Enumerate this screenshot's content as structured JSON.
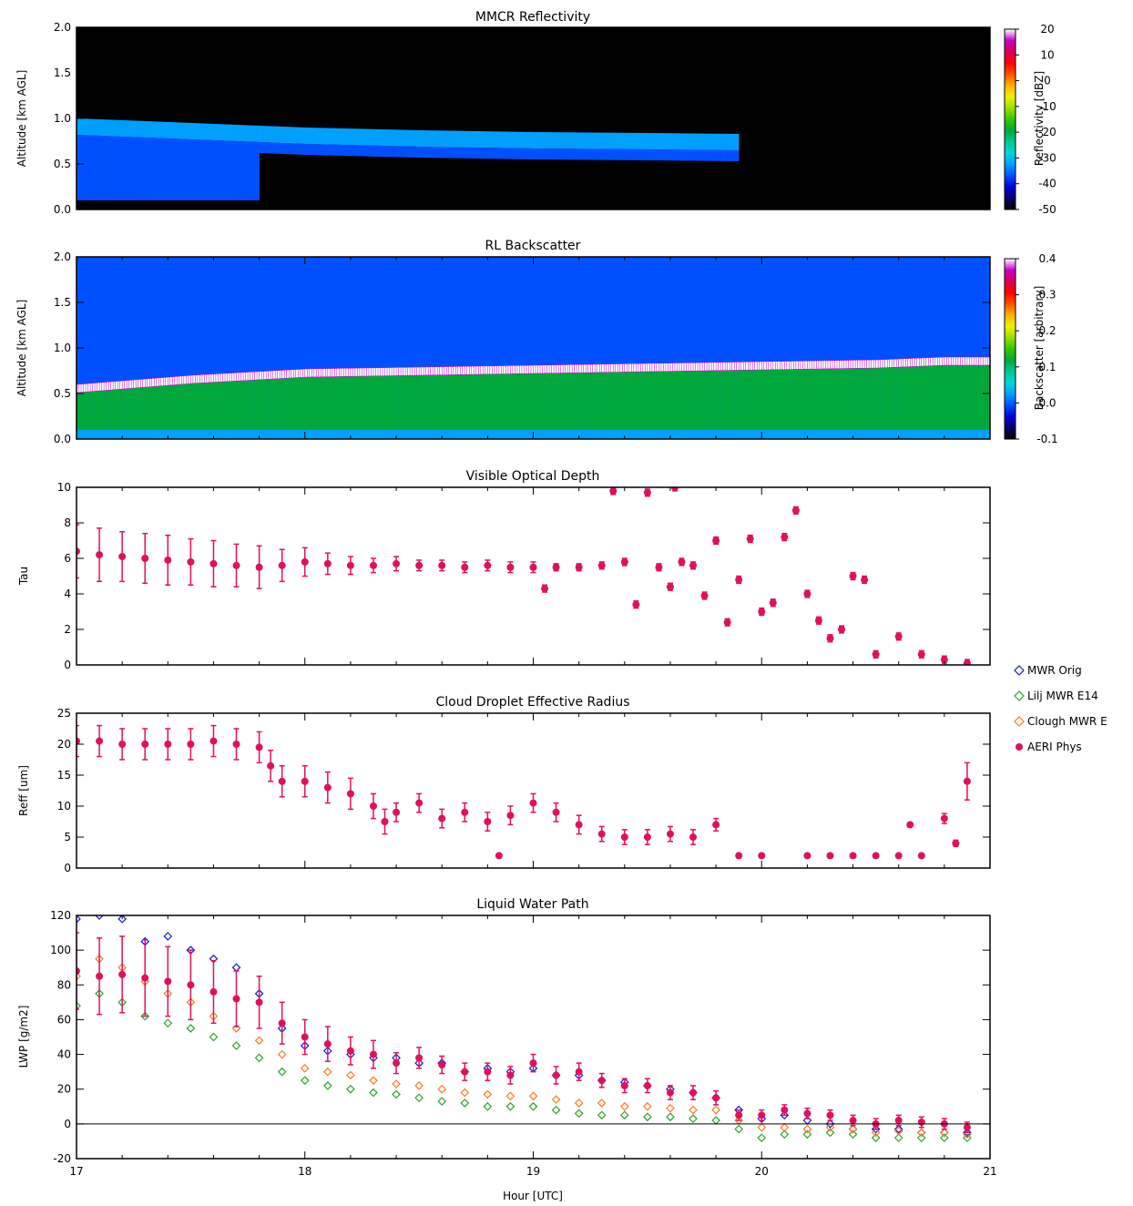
{
  "figure": {
    "xlabel": "Hour [UTC]",
    "xticks": [
      "17",
      "18",
      "19",
      "20",
      "21"
    ]
  },
  "colormap": [
    "#000000",
    "#08006a",
    "#0000d8",
    "#0050ff",
    "#00a0ff",
    "#00d8d8",
    "#00c890",
    "#00a83c",
    "#30c800",
    "#9ae000",
    "#f0f000",
    "#ffb000",
    "#ff5000",
    "#ff0000",
    "#d80058",
    "#c800c8",
    "#ffffff"
  ],
  "chart_data": [
    {
      "type": "heatmap",
      "title": "MMCR Reflectivity",
      "ylabel": "Altitude [km AGL]",
      "xlim": [
        17,
        21
      ],
      "ylim": [
        0,
        2
      ],
      "yticks": [
        "0.0",
        "0.5",
        "1.0",
        "1.5",
        "2.0"
      ],
      "colorbar": {
        "label": "Reflectivity [dBZ]",
        "range": [
          -50,
          20
        ],
        "ticks": [
          "20",
          "10",
          "0",
          "-10",
          "-20",
          "-30",
          "-40",
          "-50"
        ]
      },
      "cloud_layer": {
        "x": [
          17.0,
          17.5,
          18.0,
          18.5,
          19.0,
          19.5,
          19.9
        ],
        "top": [
          1.0,
          0.95,
          0.9,
          0.87,
          0.85,
          0.84,
          0.83
        ],
        "base_km": 0.1
      }
    },
    {
      "type": "heatmap",
      "title": "RL Backscatter",
      "ylabel": "Altitude [km AGL]",
      "xlim": [
        17,
        21
      ],
      "ylim": [
        0,
        2
      ],
      "yticks": [
        "0.0",
        "0.5",
        "1.0",
        "1.5",
        "2.0"
      ],
      "colorbar": {
        "label": "Backscatter [arbitrary]",
        "range": [
          -0.1,
          0.4
        ],
        "ticks": [
          "0.4",
          "0.3",
          "0.2",
          "0.1",
          "0.0",
          "-0.1"
        ]
      },
      "cloud_base": {
        "x": [
          17.0,
          17.5,
          18.0,
          18.5,
          19.0,
          19.5,
          20.0,
          20.5,
          20.8
        ],
        "alt_km": [
          0.55,
          0.65,
          0.72,
          0.74,
          0.76,
          0.78,
          0.8,
          0.82,
          0.85
        ]
      }
    },
    {
      "type": "scatter",
      "title": "Visible Optical Depth",
      "ylabel": "Tau",
      "xlim": [
        17,
        21
      ],
      "ylim": [
        0,
        10
      ],
      "yticks": [
        "0",
        "2",
        "4",
        "6",
        "8",
        "10"
      ],
      "series": [
        {
          "name": "AERI Phys",
          "x": [
            17.0,
            17.1,
            17.2,
            17.3,
            17.4,
            17.5,
            17.6,
            17.7,
            17.8,
            17.9,
            18.0,
            18.1,
            18.2,
            18.3,
            18.4,
            18.5,
            18.6,
            18.7,
            18.8,
            18.9,
            19.0,
            19.05,
            19.1,
            19.2,
            19.3,
            19.35,
            19.4,
            19.45,
            19.5,
            19.55,
            19.6,
            19.62,
            19.65,
            19.7,
            19.75,
            19.8,
            19.85,
            19.9,
            19.95,
            20.0,
            20.05,
            20.1,
            20.15,
            20.2,
            20.25,
            20.3,
            20.35,
            20.4,
            20.45,
            20.5,
            20.6,
            20.7,
            20.8,
            20.9
          ],
          "y": [
            6.4,
            6.2,
            6.1,
            6.0,
            5.9,
            5.8,
            5.7,
            5.6,
            5.5,
            5.6,
            5.8,
            5.7,
            5.6,
            5.6,
            5.7,
            5.6,
            5.6,
            5.5,
            5.6,
            5.5,
            5.5,
            4.3,
            5.5,
            5.5,
            5.6,
            9.8,
            5.8,
            3.4,
            9.7,
            5.5,
            4.4,
            10.0,
            5.8,
            5.6,
            3.9,
            7.0,
            2.4,
            4.8,
            7.1,
            3.0,
            3.5,
            7.2,
            8.7,
            4.0,
            2.5,
            1.5,
            2.0,
            5.0,
            4.8,
            0.6,
            1.6,
            0.6,
            0.3,
            0.1
          ],
          "err": [
            1.5,
            1.5,
            1.4,
            1.4,
            1.4,
            1.3,
            1.3,
            1.2,
            1.2,
            0.9,
            0.8,
            0.6,
            0.5,
            0.4,
            0.4,
            0.3,
            0.3,
            0.3,
            0.3,
            0.3,
            0.3,
            0.2,
            0.2,
            0.2,
            0.2,
            0.2,
            0.2,
            0.2,
            0.2,
            0.2,
            0.2,
            0.2,
            0.2,
            0.2,
            0.2,
            0.2,
            0.2,
            0.2,
            0.2,
            0.2,
            0.2,
            0.2,
            0.2,
            0.2,
            0.2,
            0.2,
            0.2,
            0.2,
            0.2,
            0.2,
            0.2,
            0.2,
            0.2,
            0.2
          ]
        }
      ]
    },
    {
      "type": "scatter",
      "title": "Cloud Droplet Effective Radius",
      "ylabel": "Reff [um]",
      "xlim": [
        17,
        21
      ],
      "ylim": [
        0,
        25
      ],
      "yticks": [
        "0",
        "5",
        "10",
        "15",
        "20",
        "25"
      ],
      "series": [
        {
          "name": "AERI Phys",
          "x": [
            17.0,
            17.1,
            17.2,
            17.3,
            17.4,
            17.5,
            17.6,
            17.7,
            17.8,
            17.85,
            17.9,
            18.0,
            18.1,
            18.2,
            18.3,
            18.35,
            18.4,
            18.5,
            18.6,
            18.7,
            18.8,
            18.85,
            18.9,
            19.0,
            19.1,
            19.2,
            19.3,
            19.4,
            19.5,
            19.6,
            19.7,
            19.8,
            19.9,
            20.0,
            20.2,
            20.3,
            20.4,
            20.5,
            20.6,
            20.65,
            20.7,
            20.8,
            20.85,
            20.9
          ],
          "y": [
            20.5,
            20.5,
            20.0,
            20.0,
            20.0,
            20.0,
            20.5,
            20.0,
            19.5,
            16.5,
            14.0,
            14.0,
            13.0,
            12.0,
            10.0,
            7.5,
            9.0,
            10.5,
            8.0,
            9.0,
            7.5,
            2.0,
            8.5,
            10.5,
            9.0,
            7.0,
            5.5,
            5.0,
            5.0,
            5.5,
            5.0,
            7.0,
            2.0,
            2.0,
            2.0,
            2.0,
            2.0,
            2.0,
            2.0,
            7.0,
            2.0,
            8.0,
            4.0,
            14.0
          ],
          "err": [
            2.5,
            2.5,
            2.5,
            2.5,
            2.5,
            2.5,
            2.5,
            2.5,
            2.5,
            2.5,
            2.5,
            2.5,
            2.5,
            2.5,
            2.0,
            2.0,
            1.5,
            1.5,
            1.5,
            1.5,
            1.5,
            0.3,
            1.5,
            1.5,
            1.5,
            1.5,
            1.2,
            1.2,
            1.2,
            1.2,
            1.2,
            1.0,
            0.3,
            0.3,
            0.3,
            0.3,
            0.3,
            0.3,
            0.3,
            0.3,
            0.3,
            0.8,
            0.5,
            3.0
          ]
        }
      ]
    },
    {
      "type": "scatter",
      "title": "Liquid Water Path",
      "ylabel": "LWP [g/m2]",
      "xlim": [
        17,
        21
      ],
      "ylim": [
        -20,
        120
      ],
      "yticks": [
        "-20",
        "0",
        "20",
        "40",
        "60",
        "80",
        "100",
        "120"
      ],
      "series": [
        {
          "name": "MWR Orig",
          "color": "#1414d8",
          "marker": "diamond-open",
          "x": [
            17.0,
            17.1,
            17.2,
            17.3,
            17.4,
            17.5,
            17.6,
            17.7,
            17.8,
            17.9,
            18.0,
            18.1,
            18.2,
            18.3,
            18.4,
            18.5,
            18.6,
            18.7,
            18.8,
            18.9,
            19.0,
            19.1,
            19.2,
            19.3,
            19.4,
            19.5,
            19.6,
            19.7,
            19.8,
            19.9,
            20.0,
            20.1,
            20.2,
            20.3,
            20.4,
            20.5,
            20.6,
            20.7,
            20.8,
            20.9
          ],
          "y": [
            118,
            120,
            118,
            105,
            108,
            100,
            95,
            90,
            75,
            55,
            45,
            42,
            40,
            38,
            38,
            35,
            35,
            30,
            32,
            30,
            32,
            28,
            28,
            25,
            24,
            22,
            20,
            18,
            15,
            8,
            3,
            5,
            2,
            0,
            -3,
            -3,
            -3,
            -5,
            -5,
            -5
          ]
        },
        {
          "name": "Lilj MWR E14",
          "color": "#30a030",
          "marker": "diamond-open",
          "x": [
            17.0,
            17.1,
            17.2,
            17.3,
            17.4,
            17.5,
            17.6,
            17.7,
            17.8,
            17.9,
            18.0,
            18.1,
            18.2,
            18.3,
            18.4,
            18.5,
            18.6,
            18.7,
            18.8,
            18.9,
            19.0,
            19.1,
            19.2,
            19.3,
            19.4,
            19.5,
            19.6,
            19.7,
            19.8,
            19.9,
            20.0,
            20.1,
            20.2,
            20.3,
            20.4,
            20.5,
            20.6,
            20.7,
            20.8,
            20.9
          ],
          "y": [
            68,
            75,
            70,
            62,
            58,
            55,
            50,
            45,
            38,
            30,
            25,
            22,
            20,
            18,
            17,
            15,
            13,
            12,
            10,
            10,
            10,
            8,
            6,
            5,
            5,
            4,
            4,
            3,
            2,
            -3,
            -8,
            -6,
            -6,
            -5,
            -6,
            -8,
            -8,
            -8,
            -8,
            -8
          ]
        },
        {
          "name": "Clough MWR E",
          "color": "#ff7820",
          "marker": "diamond-open",
          "x": [
            17.0,
            17.1,
            17.2,
            17.3,
            17.4,
            17.5,
            17.6,
            17.7,
            17.8,
            17.9,
            18.0,
            18.1,
            18.2,
            18.3,
            18.4,
            18.5,
            18.6,
            18.7,
            18.8,
            18.9,
            19.0,
            19.1,
            19.2,
            19.3,
            19.4,
            19.5,
            19.6,
            19.7,
            19.8,
            19.9,
            20.0,
            20.1,
            20.2,
            20.3,
            20.4,
            20.5,
            20.6,
            20.7,
            20.8,
            20.9
          ],
          "y": [
            85,
            95,
            90,
            82,
            75,
            70,
            62,
            55,
            48,
            40,
            32,
            30,
            28,
            25,
            23,
            22,
            20,
            18,
            17,
            16,
            16,
            14,
            12,
            12,
            10,
            10,
            9,
            8,
            8,
            2,
            -2,
            -2,
            -3,
            -2,
            -3,
            -5,
            -4,
            -5,
            -5,
            -6
          ]
        },
        {
          "name": "AERI Phys",
          "color": "#e0105c",
          "marker": "dot",
          "x": [
            17.0,
            17.1,
            17.2,
            17.3,
            17.4,
            17.5,
            17.6,
            17.7,
            17.8,
            17.9,
            18.0,
            18.1,
            18.2,
            18.3,
            18.4,
            18.5,
            18.6,
            18.7,
            18.8,
            18.9,
            19.0,
            19.1,
            19.2,
            19.3,
            19.4,
            19.5,
            19.6,
            19.7,
            19.8,
            19.9,
            20.0,
            20.1,
            20.2,
            20.3,
            20.4,
            20.5,
            20.6,
            20.7,
            20.8,
            20.9
          ],
          "y": [
            88,
            85,
            86,
            84,
            82,
            80,
            76,
            72,
            70,
            58,
            50,
            46,
            42,
            40,
            35,
            38,
            34,
            30,
            30,
            28,
            35,
            28,
            30,
            25,
            22,
            22,
            18,
            18,
            15,
            5,
            5,
            8,
            6,
            5,
            2,
            0,
            2,
            1,
            0,
            -2
          ],
          "err": [
            22,
            22,
            22,
            22,
            20,
            20,
            18,
            16,
            15,
            12,
            10,
            10,
            8,
            8,
            6,
            6,
            5,
            5,
            5,
            5,
            5,
            5,
            5,
            4,
            4,
            4,
            4,
            4,
            4,
            3,
            3,
            3,
            3,
            3,
            3,
            3,
            3,
            3,
            3,
            3
          ]
        }
      ]
    }
  ]
}
